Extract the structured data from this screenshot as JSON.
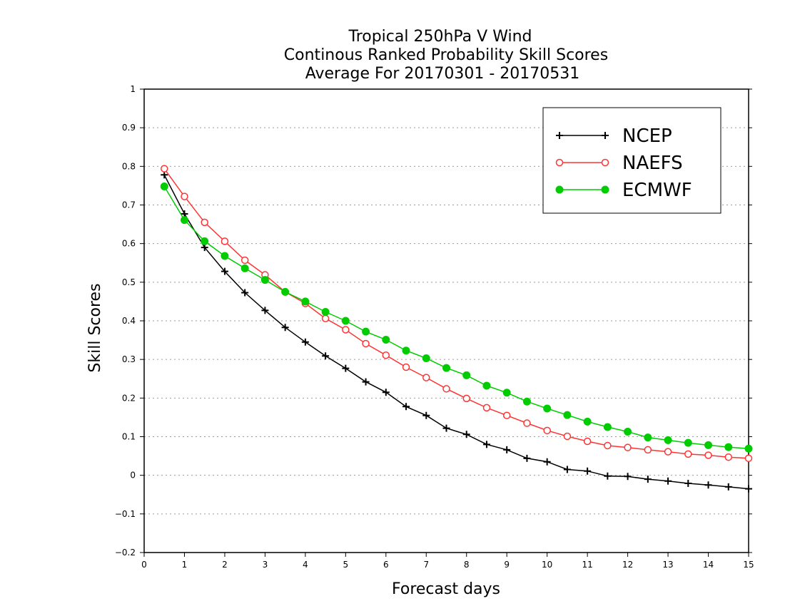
{
  "chart_data": {
    "type": "line",
    "title_lines": [
      "Tropical 250hPa V Wind",
      "Continous Ranked Probability Skill Scores",
      "Average For 20170301 - 20170531"
    ],
    "xlabel": "Forecast days",
    "ylabel": "Skill Scores",
    "xlim": [
      0,
      15
    ],
    "ylim": [
      -0.2,
      1
    ],
    "xticks": [
      "0",
      "1",
      "2",
      "3",
      "4",
      "5",
      "6",
      "7",
      "8",
      "9",
      "10",
      "11",
      "12",
      "13",
      "14",
      "15"
    ],
    "yticks": [
      "−0.2",
      "−0.1",
      "0",
      "0.1",
      "0.2",
      "0.3",
      "0.4",
      "0.5",
      "0.6",
      "0.7",
      "0.8",
      "0.9",
      "1"
    ],
    "grid": "horizontal dotted",
    "legend_position": "top-right",
    "x": [
      0.5,
      1,
      1.5,
      2,
      2.5,
      3,
      3.5,
      4,
      4.5,
      5,
      5.5,
      6,
      6.5,
      7,
      7.5,
      8,
      8.5,
      9,
      9.5,
      10,
      10.5,
      11,
      11.5,
      12,
      12.5,
      13,
      13.5,
      14,
      14.5,
      15
    ],
    "series": [
      {
        "name": "NCEP",
        "color": "#000000",
        "marker": "plus",
        "values": [
          0.778,
          0.677,
          0.59,
          0.528,
          0.473,
          0.427,
          0.383,
          0.345,
          0.309,
          0.277,
          0.242,
          0.215,
          0.178,
          0.155,
          0.122,
          0.106,
          0.08,
          0.066,
          0.044,
          0.035,
          0.015,
          0.011,
          -0.002,
          -0.003,
          -0.01,
          -0.015,
          -0.021,
          -0.025,
          -0.03,
          -0.035
        ]
      },
      {
        "name": "NAEFS",
        "color": "#ff3333",
        "marker": "open-circle",
        "values": [
          0.794,
          0.722,
          0.655,
          0.606,
          0.557,
          0.519,
          0.475,
          0.445,
          0.406,
          0.377,
          0.341,
          0.311,
          0.28,
          0.253,
          0.224,
          0.199,
          0.175,
          0.155,
          0.135,
          0.116,
          0.101,
          0.088,
          0.077,
          0.072,
          0.066,
          0.061,
          0.055,
          0.052,
          0.047,
          0.044
        ]
      },
      {
        "name": "ECMWF",
        "color": "#00cc00",
        "marker": "filled-circle",
        "values": [
          0.748,
          0.661,
          0.606,
          0.568,
          0.536,
          0.506,
          0.475,
          0.45,
          0.423,
          0.4,
          0.372,
          0.351,
          0.323,
          0.303,
          0.278,
          0.259,
          0.232,
          0.214,
          0.191,
          0.173,
          0.156,
          0.139,
          0.125,
          0.113,
          0.098,
          0.091,
          0.084,
          0.078,
          0.073,
          0.069
        ]
      }
    ]
  }
}
